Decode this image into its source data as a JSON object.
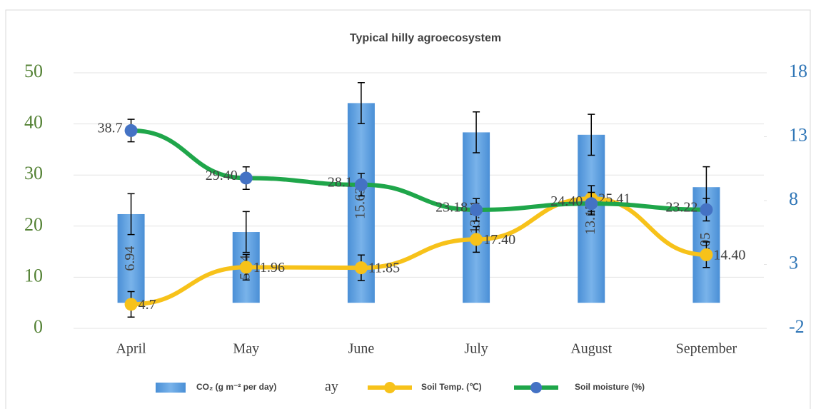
{
  "chart_data": {
    "type": "combo",
    "title": "Typical hilly agroecosystem",
    "categories": [
      "April",
      "May",
      "June",
      "July",
      "August",
      "September"
    ],
    "series": [
      {
        "name": "CO₂ (g m⁻² per day)",
        "type": "bar",
        "axis": "y2",
        "color": "#5b9bd5",
        "values": [
          6.94,
          5.54,
          15.63,
          13.34,
          13.15,
          9.05
        ],
        "errors": [
          1.6,
          1.6,
          1.6,
          1.6,
          1.6,
          1.6
        ]
      },
      {
        "name": "Soil Temp. (℃)",
        "type": "line",
        "color": "#f7c21a",
        "marker_color": "#f7c21a",
        "values": [
          4.7,
          11.96,
          11.85,
          17.4,
          25.41,
          14.4
        ],
        "value_labels": [
          "4.7",
          "11.96",
          "11.85",
          "17.40",
          "25.41",
          "14.40"
        ],
        "errors": [
          2.5,
          2.5,
          2.5,
          2.5,
          2.5,
          2.5
        ]
      },
      {
        "name": "Soil moisture (%)",
        "type": "line",
        "color": "#1fa64a",
        "marker_color": "#4472c4",
        "values": [
          38.7,
          29.4,
          28.1,
          23.18,
          24.4,
          23.22
        ],
        "value_labels": [
          "38.7",
          "29.40",
          "28.1",
          "23.18",
          "24.40",
          "23.22"
        ],
        "errors": [
          2.2,
          2.2,
          2.2,
          2.2,
          2.2,
          2.2
        ]
      }
    ],
    "annotations": [
      "ay"
    ],
    "ylim": [
      0,
      50
    ],
    "yticks": [
      0,
      10,
      20,
      30,
      40,
      50
    ],
    "y2lim": [
      -2,
      18
    ],
    "y2ticks": [
      -2,
      3,
      8,
      13,
      18
    ],
    "grid": true,
    "legend": "bottom"
  }
}
